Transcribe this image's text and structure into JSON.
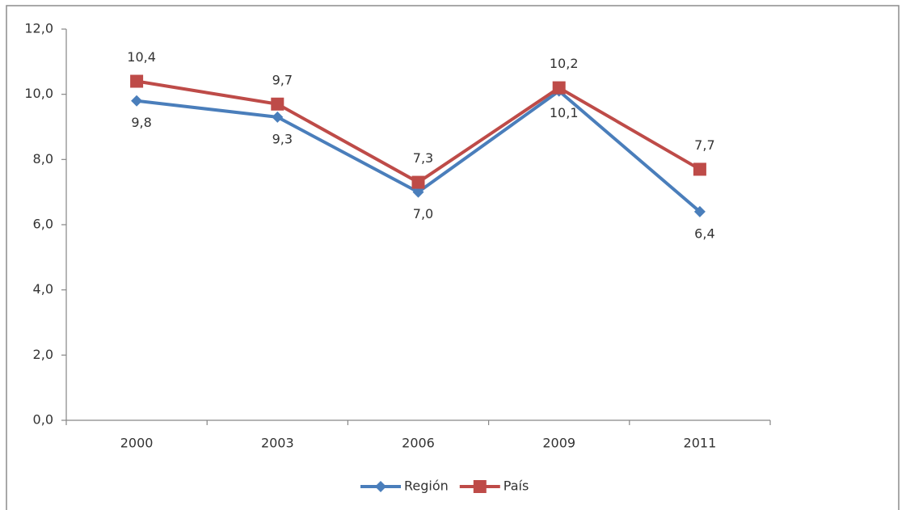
{
  "chart_data": {
    "type": "line",
    "categories": [
      "2000",
      "2003",
      "2006",
      "2009",
      "2011"
    ],
    "series": [
      {
        "name": "Región",
        "color": "#4a7ebb",
        "marker": "diamond",
        "label_position": "below",
        "values": [
          9.8,
          9.3,
          7.0,
          10.1,
          6.4
        ],
        "value_labels": [
          "9,8",
          "9,3",
          "7,0",
          "10,1",
          "6,4"
        ]
      },
      {
        "name": "País",
        "color": "#be4b48",
        "marker": "square",
        "label_position": "above",
        "values": [
          10.4,
          9.7,
          7.3,
          10.2,
          7.7
        ],
        "value_labels": [
          "10,4",
          "9,7",
          "7,3",
          "10,2",
          "7,7"
        ]
      }
    ],
    "ylim": [
      0,
      12
    ],
    "yticks": [
      {
        "value": 0,
        "label": "0,0"
      },
      {
        "value": 2,
        "label": "2,0"
      },
      {
        "value": 4,
        "label": "4,0"
      },
      {
        "value": 6,
        "label": "6,0"
      },
      {
        "value": 8,
        "label": "8,0"
      },
      {
        "value": 10,
        "label": "10,0"
      },
      {
        "value": 12,
        "label": "12,0"
      }
    ],
    "grid": false,
    "legend": "bottom"
  }
}
